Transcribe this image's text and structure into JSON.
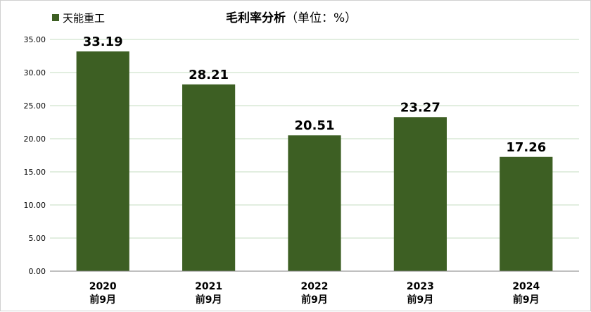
{
  "chart_data": {
    "type": "bar",
    "title_main": "毛利率分析",
    "title_unit": "（单位：%）",
    "categories": [
      [
        "2020",
        "前9月"
      ],
      [
        "2021",
        "前9月"
      ],
      [
        "2022",
        "前9月"
      ],
      [
        "2023",
        "前9月"
      ],
      [
        "2024",
        "前9月"
      ]
    ],
    "series": [
      {
        "name": "天能重工",
        "values": [
          33.19,
          28.21,
          20.51,
          23.27,
          17.26
        ]
      }
    ],
    "data_labels": [
      "33.19",
      "28.21",
      "20.51",
      "23.27",
      "17.26"
    ],
    "y_ticks": [
      "0.00",
      "5.00",
      "10.00",
      "15.00",
      "20.00",
      "25.00",
      "30.00",
      "35.00"
    ],
    "ylim": [
      0,
      35
    ],
    "grid": true,
    "legend_position": "top-left",
    "colors": {
      "bar": "#3d5f23",
      "grid": "#c6dcc0",
      "axis": "#808080"
    }
  }
}
